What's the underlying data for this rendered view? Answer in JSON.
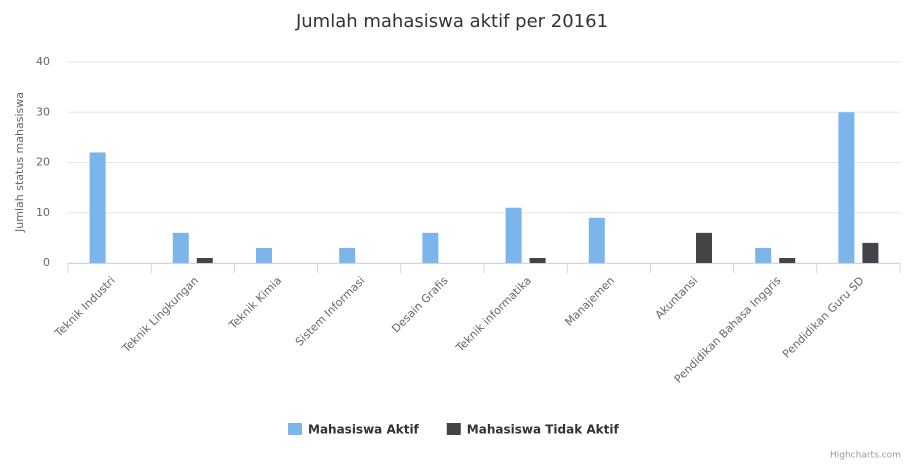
{
  "chart_data": {
    "type": "bar",
    "title": "Jumlah mahasiswa aktif per 20161",
    "y_label": "Jumlah status mahasiswa",
    "categories": [
      "Teknik Industri",
      "Teknik Lingkungan",
      "Teknik Kimia",
      "Sistem Informasi",
      "Desain Grafis",
      "Teknik informatika",
      "Manajemen",
      "Akuntansi",
      "Pendidikan Bahasa Inggris",
      "Pendidikan Guru SD"
    ],
    "series": [
      {
        "name": "Mahasiswa Aktif",
        "color": "#7cb5ec",
        "values": [
          22,
          6,
          3,
          3,
          6,
          11,
          9,
          null,
          3,
          30
        ]
      },
      {
        "name": "Mahasiswa Tidak Aktif",
        "color": "#434348",
        "values": [
          null,
          1,
          null,
          null,
          null,
          1,
          null,
          6,
          1,
          4
        ]
      }
    ],
    "ylim": [
      0,
      40
    ],
    "yticks": [
      0,
      10,
      20,
      30,
      40
    ],
    "grid": true,
    "legend": "bottom",
    "credit": "Highcharts.com"
  }
}
